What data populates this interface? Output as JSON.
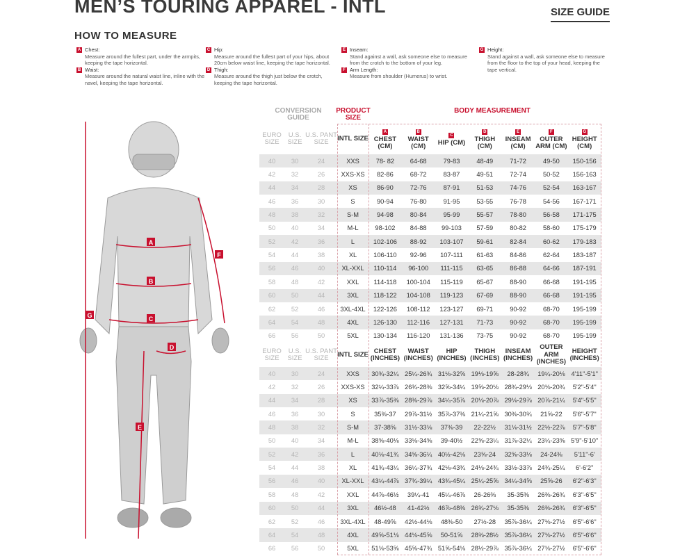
{
  "header": {
    "title": "MEN’S TOURING APPAREL - INTL",
    "size_guide": "SIZE GUIDE",
    "how_to_measure": "HOW TO MEASURE"
  },
  "measures": [
    {
      "letter": "A",
      "name": "Chest:",
      "text": "Measure around the fullest part, under the armpits, keeping the tape horizontal."
    },
    {
      "letter": "B",
      "name": "Waist:",
      "text": "Measure around the natural waist line, inline with the navel, keeping the tape horizontal."
    },
    {
      "letter": "C",
      "name": "Hip:",
      "text": "Measure around the fullest part of your hips, about 20cm below waist line, keeping the tape horizontal."
    },
    {
      "letter": "D",
      "name": "Thigh:",
      "text": "Measure around the thigh just below the crotch, keeping the tape horizontal."
    },
    {
      "letter": "E",
      "name": "Inseam:",
      "text": "Stand against a wall, ask someone else to measure from the crotch to the bottom of your leg."
    },
    {
      "letter": "F",
      "name": "Arm Length:",
      "text": "Measure from shoulder (Humerus) to wrist."
    },
    {
      "letter": "G",
      "name": "Height:",
      "text": "Stand against a wall, ask someone else to measure from the floor to the top of your head, keeping the tape vertical."
    }
  ],
  "table": {
    "groups": {
      "conversion": "CONVERSION GUIDE",
      "product": "PRODUCT SIZE",
      "body": "BODY MEASUREMENT"
    },
    "conv_headers": [
      "EURO SIZE",
      "U.S. SIZE",
      "U.S. PANT SIZE"
    ],
    "intl_header": "INTL SIZE",
    "body_letters": [
      "A",
      "B",
      "C",
      "D",
      "E",
      "F",
      "G"
    ],
    "cm_headers": [
      "CHEST (CM)",
      "WAIST (CM)",
      "HIP (CM)",
      "THIGH (CM)",
      "INSEAM (CM)",
      "OUTER ARM (CM)",
      "HEIGHT (CM)"
    ],
    "in_headers": [
      "CHEST (INCHES)",
      "WAIST (INCHES)",
      "HIP (INCHES)",
      "THIGH (INCHES)",
      "INSEAM (INCHES)",
      "OUTER ARM (INCHES)",
      "HEIGHT (INCHES)"
    ],
    "euro": [
      "40",
      "42",
      "44",
      "46",
      "48",
      "50",
      "52",
      "54",
      "56",
      "58",
      "60",
      "62",
      "64",
      "66"
    ],
    "us": [
      "30",
      "32",
      "34",
      "36",
      "38",
      "40",
      "42",
      "44",
      "46",
      "48",
      "50",
      "52",
      "54",
      "56"
    ],
    "us_pant": [
      "24",
      "26",
      "28",
      "30",
      "32",
      "34",
      "36",
      "38",
      "40",
      "42",
      "44",
      "46",
      "48",
      "50"
    ],
    "intl": [
      "XXS",
      "XXS-XS",
      "XS",
      "S",
      "S-M",
      "M-L",
      "L",
      "XL",
      "XL-XXL",
      "XXL",
      "3XL",
      "3XL-4XL",
      "4XL",
      "5XL"
    ],
    "cm": [
      [
        "78- 82",
        "64-68",
        "79-83",
        "48-49",
        "71-72",
        "49-50",
        "150-156"
      ],
      [
        "82-86",
        "68-72",
        "83-87",
        "49-51",
        "72-74",
        "50-52",
        "156-163"
      ],
      [
        "86-90",
        "72-76",
        "87-91",
        "51-53",
        "74-76",
        "52-54",
        "163-167"
      ],
      [
        "90-94",
        "76-80",
        "91-95",
        "53-55",
        "76-78",
        "54-56",
        "167-171"
      ],
      [
        "94-98",
        "80-84",
        "95-99",
        "55-57",
        "78-80",
        "56-58",
        "171-175"
      ],
      [
        "98-102",
        "84-88",
        "99-103",
        "57-59",
        "80-82",
        "58-60",
        "175-179"
      ],
      [
        "102-106",
        "88-92",
        "103-107",
        "59-61",
        "82-84",
        "60-62",
        "179-183"
      ],
      [
        "106-110",
        "92-96",
        "107-111",
        "61-63",
        "84-86",
        "62-64",
        "183-187"
      ],
      [
        "110-114",
        "96-100",
        "111-115",
        "63-65",
        "86-88",
        "64-66",
        "187-191"
      ],
      [
        "114-118",
        "100-104",
        "115-119",
        "65-67",
        "88-90",
        "66-68",
        "191-195"
      ],
      [
        "118-122",
        "104-108",
        "119-123",
        "67-69",
        "88-90",
        "66-68",
        "191-195"
      ],
      [
        "122-126",
        "108-112",
        "123-127",
        "69-71",
        "90-92",
        "68-70",
        "195-199"
      ],
      [
        "126-130",
        "112-116",
        "127-131",
        "71-73",
        "90-92",
        "68-70",
        "195-199"
      ],
      [
        "130-134",
        "116-120",
        "131-136",
        "73-75",
        "90-92",
        "68-70",
        "195-199"
      ]
    ],
    "inches": [
      [
        "30¾-32¼",
        "25¼-26¾",
        "31⅛-32⅝",
        "19⅛-19⅝",
        "28-28¾",
        "19¼-20⅛",
        "4'11\"-5'1\""
      ],
      [
        "32¼-33⅞",
        "26¾-28⅜",
        "32⅝-34¼",
        "19⅝-20⅛",
        "28¾-29⅛",
        "20⅛-20¾",
        "5'2\"-5'4\""
      ],
      [
        "33⅞-35⅜",
        "28⅜-29⅞",
        "34¼-35⅞",
        "20⅛-20⅞",
        "29⅛-29⅞",
        "20⅞-21¼",
        "5'4\"-5'5\""
      ],
      [
        "35⅜-37",
        "29⅞-31½",
        "35⅞-37⅜",
        "21¼-21⅝",
        "30⅜-30¾",
        "21⅝-22",
        "5'6\"-5'7\""
      ],
      [
        "37-38⅝",
        "31½-33⅛",
        "37⅜-39",
        "22-22½",
        "31⅛-31½",
        "22½-22⅞",
        "5'7\"-5'8\""
      ],
      [
        "38⅝-40⅛",
        "33⅛-34⅝",
        "39-40½",
        "22⅝-23¼",
        "31⅞-32¼",
        "23¼-23⅝",
        "5'9\"-5'10\""
      ],
      [
        "40⅛-41¾",
        "34⅝-36¼",
        "40½-42⅛",
        "23⅝-24",
        "32⅝-33⅛",
        "24-24⅜",
        "5'11\"-6'"
      ],
      [
        "41¾-43¼",
        "36¼-37¾",
        "42⅛-43¾",
        "24⅛-24¾",
        "33½-33⅞",
        "24¾-25¼",
        "6'-6'2\""
      ],
      [
        "43¼-44⅞",
        "37¾-39¼",
        "43¾-45¼",
        "25¼-25⅝",
        "34¼-34⅝",
        "25⅝-26",
        "6'2\"-6'3\""
      ],
      [
        "44⅞-46½",
        "39¼-41",
        "45¼-46⅞",
        "26-26⅜",
        "35-35⅜",
        "26⅜-26¾",
        "6'3\"-6'5\""
      ],
      [
        "46½-48",
        "41-42½",
        "46⅞-48⅜",
        "26¾-27⅛",
        "35-35⅜",
        "26⅜-26¾",
        "6'3\"-6'5\""
      ],
      [
        "48-49⅝",
        "42½-44⅛",
        "48⅜-50",
        "27½-28",
        "35⅞-36¼",
        "27⅛-27½",
        "6'5\"-6'6\""
      ],
      [
        "49⅝-51⅛",
        "44⅛-45⅝",
        "50-51⅝",
        "28⅜-28½",
        "35⅞-36¼",
        "27⅛-27½",
        "6'5\"-6'6\""
      ],
      [
        "51⅛-53⅝",
        "45⅝-47¾",
        "51⅝-54⅛",
        "28½-29⅞",
        "35⅞-36¼",
        "27⅛-27½",
        "6'5\"-6'6\""
      ]
    ]
  },
  "colors": {
    "accent": "#c8102e",
    "row_shade": "#e6e6e6"
  }
}
